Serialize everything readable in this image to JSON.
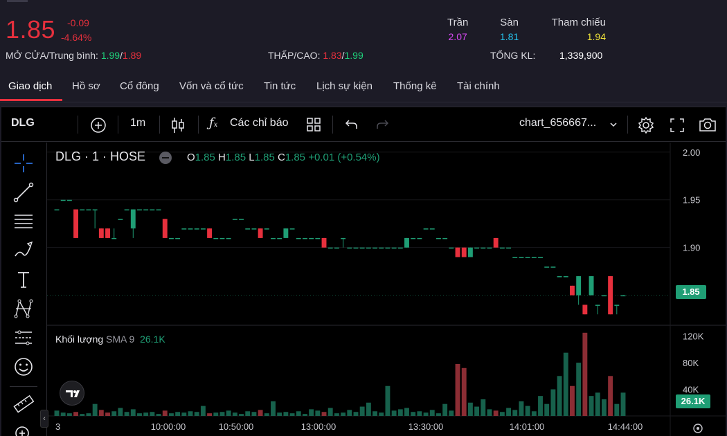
{
  "quote": {
    "price": "1.85",
    "change": "-0.09",
    "change_pct": "-4.64%",
    "open_avg_label": "MỞ CỬA/Trung bình:",
    "open": "1.99",
    "avg": "1.89",
    "low_high_label": "THẤP/CAO:",
    "low": "1.83",
    "high": "1.99",
    "ceiling_label": "Trần",
    "ceiling": "2.07",
    "floor_label": "Sàn",
    "floor": "1.81",
    "ref_label": "Tham chiếu",
    "ref": "1.94",
    "total_vol_label": "TỔNG KL:",
    "total_vol": "1,339,900",
    "colors": {
      "down": "#e7303d",
      "up": "#1fd17b",
      "ceiling": "#d649f2",
      "floor": "#26c6f0",
      "ref": "#f4e73a"
    }
  },
  "tabs": [
    {
      "label": "Giao dịch",
      "active": true
    },
    {
      "label": "Hồ sơ"
    },
    {
      "label": "Cổ đông"
    },
    {
      "label": "Vốn và cổ tức"
    },
    {
      "label": "Tin tức"
    },
    {
      "label": "Lịch sự kiện"
    },
    {
      "label": "Thống kê"
    },
    {
      "label": "Tài chính"
    }
  ],
  "toolbar": {
    "symbol": "DLG",
    "interval": "1m",
    "indicators_label": "Các chỉ báo",
    "layout_name": "chart_656667...",
    "icons": [
      "plus-circle-icon",
      "candles-icon",
      "fx-icon",
      "grid-icon",
      "undo-icon",
      "redo-icon",
      "gear-icon",
      "fullscreen-icon",
      "camera-icon"
    ]
  },
  "left_tools": [
    "crosshair-icon",
    "trendline-icon",
    "fib-lines-icon",
    "brush-icon",
    "text-icon",
    "pattern-icon",
    "forecast-icon",
    "smiley-icon",
    "ruler-icon",
    "zoom-icon"
  ],
  "legend": {
    "title": "DLG · 1 · HOSE",
    "o_label": "O",
    "o": "1.85",
    "h_label": "H",
    "h": "1.85",
    "l_label": "L",
    "l": "1.85",
    "c_label": "C",
    "c": "1.85",
    "delta": "+0.01 (+0.54%)"
  },
  "volume_legend": {
    "label": "Khối lượng",
    "sma": "SMA 9",
    "value": "26.1K"
  },
  "price_badge": "1.85",
  "volume_badge": "26.1K",
  "chart_data": {
    "type": "candlestick",
    "price_axis": {
      "ticks": [
        "2.00",
        "1.95",
        "1.90"
      ],
      "range": [
        1.82,
        2.01
      ]
    },
    "volume_axis": {
      "ticks": [
        "120K",
        "80K",
        "40K"
      ],
      "range": [
        0,
        130000
      ]
    },
    "time_ticks": [
      "3",
      "10:00:00",
      "10:50:00",
      "13:00:00",
      "13:30:00",
      "14:01:00",
      "14:44:00"
    ],
    "price_key_points": [
      {
        "t": "start",
        "close": 1.94
      },
      {
        "t": "10:00:00",
        "close": 1.93
      },
      {
        "t": "13:00:00",
        "close": 1.91
      },
      {
        "t": "13:30:00",
        "close": 1.9
      },
      {
        "t": "14:01:00",
        "close": 1.89
      },
      {
        "t": "14:44:00",
        "close": 1.85
      }
    ],
    "last_price": 1.85,
    "last_volume": "26.1K"
  }
}
